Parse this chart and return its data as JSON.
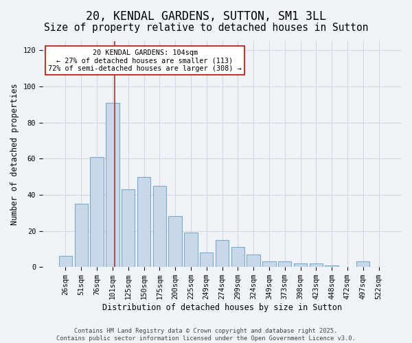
{
  "title": "20, KENDAL GARDENS, SUTTON, SM1 3LL",
  "subtitle": "Size of property relative to detached houses in Sutton",
  "xlabel": "Distribution of detached houses by size in Sutton",
  "ylabel": "Number of detached properties",
  "categories": [
    "26sqm",
    "51sqm",
    "76sqm",
    "101sqm",
    "125sqm",
    "150sqm",
    "175sqm",
    "200sqm",
    "225sqm",
    "249sqm",
    "274sqm",
    "299sqm",
    "324sqm",
    "349sqm",
    "373sqm",
    "398sqm",
    "423sqm",
    "448sqm",
    "472sqm",
    "497sqm",
    "522sqm"
  ],
  "values": [
    6,
    35,
    61,
    91,
    43,
    50,
    45,
    28,
    19,
    8,
    15,
    11,
    7,
    3,
    3,
    2,
    2,
    1,
    0,
    3,
    0
  ],
  "bar_color": "#c8d8e8",
  "bar_edge_color": "#7aaac8",
  "highlight_bar_index": 3,
  "highlight_line_color": "#c0392b",
  "annotation_text": "20 KENDAL GARDENS: 104sqm\n← 27% of detached houses are smaller (113)\n72% of semi-detached houses are larger (308) →",
  "annotation_box_color": "#ffffff",
  "annotation_box_edge_color": "#c0392b",
  "ylim": [
    0,
    125
  ],
  "yticks": [
    0,
    20,
    40,
    60,
    80,
    100,
    120
  ],
  "grid_color": "#d0d8e0",
  "background_color": "#f0f4f8",
  "footer_text": "Contains HM Land Registry data © Crown copyright and database right 2025.\nContains public sector information licensed under the Open Government Licence v3.0.",
  "title_fontsize": 12,
  "subtitle_fontsize": 10.5,
  "axis_label_fontsize": 8.5,
  "tick_fontsize": 7.5
}
